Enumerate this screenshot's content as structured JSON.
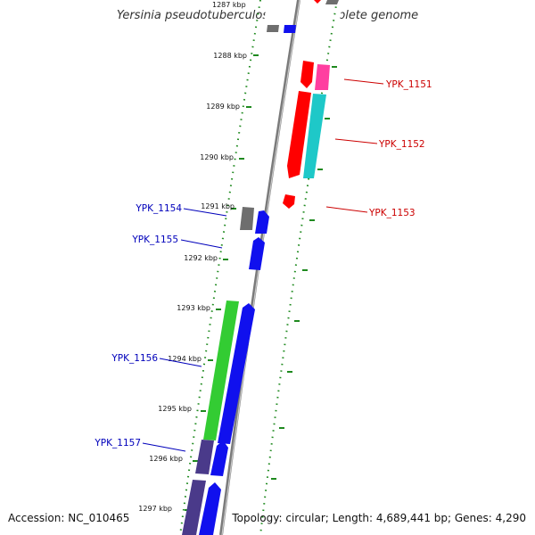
{
  "title": "Yersinia pseudotuberculosis YPIII, complete genome",
  "accession": "Accession: NC_010465",
  "summary": "Topology: circular; Length: 4,689,441 bp; Genes: 4,290",
  "colors": {
    "backbone": "#8a8a8a",
    "ticks": "#1f8a1f",
    "label_red": "#cc0000",
    "label_blue": "#0000bb",
    "gene_red": "#ff0000",
    "gene_pink": "#ff3fa0",
    "gene_cyan": "#1ec8c8",
    "gene_blue": "#1010ee",
    "gene_green": "#33cc33",
    "gene_gray": "#6e6e6e",
    "gene_purple": "#4a3a8a"
  },
  "kbp_labels": [
    {
      "text": "1287 kbp"
    },
    {
      "text": "1288 kbp"
    },
    {
      "text": "1289 kbp"
    },
    {
      "text": "1290 kbp"
    },
    {
      "text": "1291 kbp"
    },
    {
      "text": "1292 kbp"
    },
    {
      "text": "1293 kbp"
    },
    {
      "text": "1294 kbp"
    },
    {
      "text": "1295 kbp"
    },
    {
      "text": "1296 kbp"
    },
    {
      "text": "1297 kbp"
    }
  ],
  "gene_labels": [
    {
      "text": "YPK_1151",
      "strand": "right"
    },
    {
      "text": "YPK_1152",
      "strand": "right"
    },
    {
      "text": "YPK_1153",
      "strand": "right"
    },
    {
      "text": "YPK_1154",
      "strand": "left"
    },
    {
      "text": "YPK_1155",
      "strand": "left"
    },
    {
      "text": "YPK_1156",
      "strand": "left"
    },
    {
      "text": "YPK_1157",
      "strand": "left"
    }
  ]
}
